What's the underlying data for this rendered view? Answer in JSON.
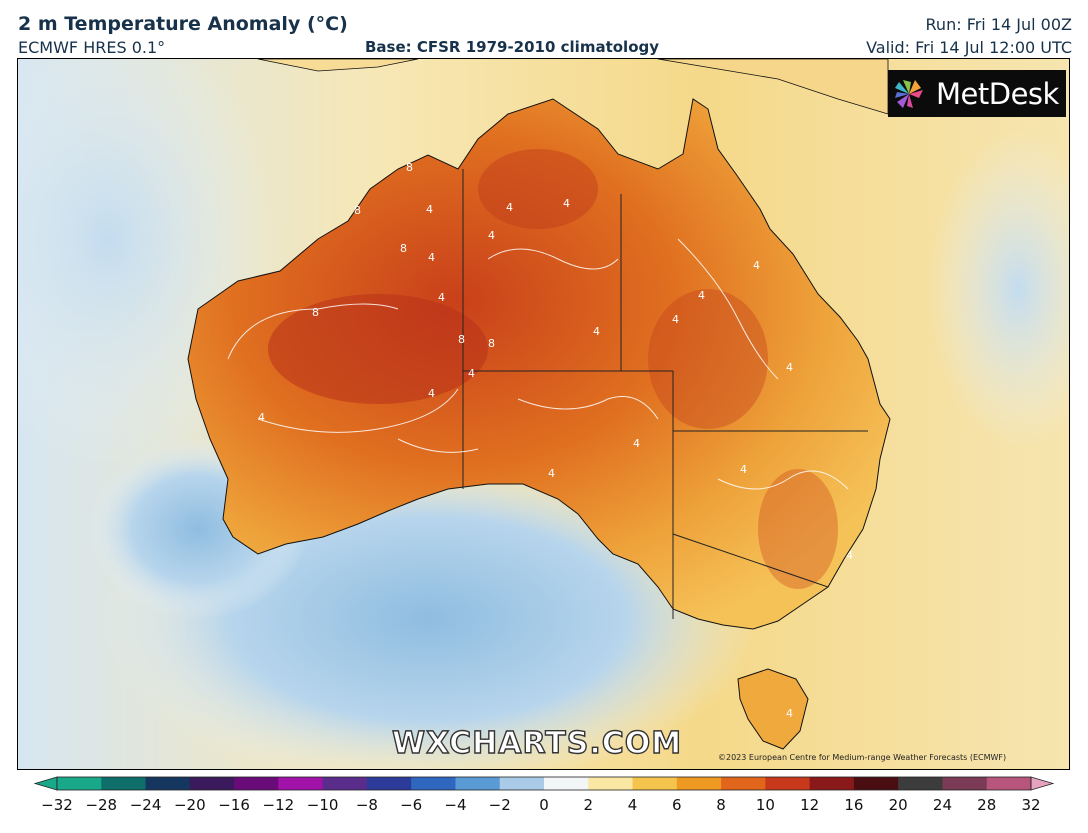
{
  "header": {
    "title": "2 m Temperature Anomaly (°C)",
    "model": "ECMWF HRES 0.1°",
    "base": "Base: CFSR 1979-2010 climatology",
    "run": "Run: Fri 14 Jul 00Z",
    "valid": "Valid: Fri 14 Jul 12:00 UTC"
  },
  "logo": {
    "text": "MetDesk",
    "icon": "metdesk-pinwheel-icon"
  },
  "watermark": "WXCHARTS.COM",
  "copyright": "©2023 European Centre for Medium-range Weather Forecasts (ECMWF)",
  "contour_labels": [
    "8",
    "8",
    "8",
    "8",
    "8",
    "8",
    "4",
    "4",
    "4",
    "4",
    "4",
    "4",
    "4",
    "4",
    "4",
    "4",
    "4",
    "4",
    "4",
    "4",
    "4",
    "4",
    "4",
    "4",
    "4"
  ],
  "colorbar": {
    "ticks": [
      "−32",
      "−28",
      "−24",
      "−20",
      "−16",
      "−12",
      "−10",
      "−8",
      "−6",
      "−4",
      "−2",
      "0",
      "2",
      "4",
      "6",
      "8",
      "10",
      "12",
      "16",
      "20",
      "24",
      "28",
      "32"
    ],
    "colors": [
      "#1aa88a",
      "#0e6f6a",
      "#15365e",
      "#3a1a5c",
      "#6a0b7a",
      "#a012a8",
      "#5a2c8c",
      "#2c3a9a",
      "#2f66c0",
      "#5b9bd5",
      "#a9cbe8",
      "#f3f6f7",
      "#fbe7a4",
      "#f4c44c",
      "#ee9a22",
      "#e1651a",
      "#c8381a",
      "#8a1a1a",
      "#4a0e12",
      "#3c3c3c",
      "#7b3a55",
      "#b8557c",
      "#e7a2c0"
    ]
  },
  "colors": {
    "ocean_warm": "#f3d98d",
    "ocean_cold": "#9fc6e4",
    "land_hot": "#c63a18",
    "land_warm": "#e2721e",
    "land_mild": "#f2b545"
  }
}
